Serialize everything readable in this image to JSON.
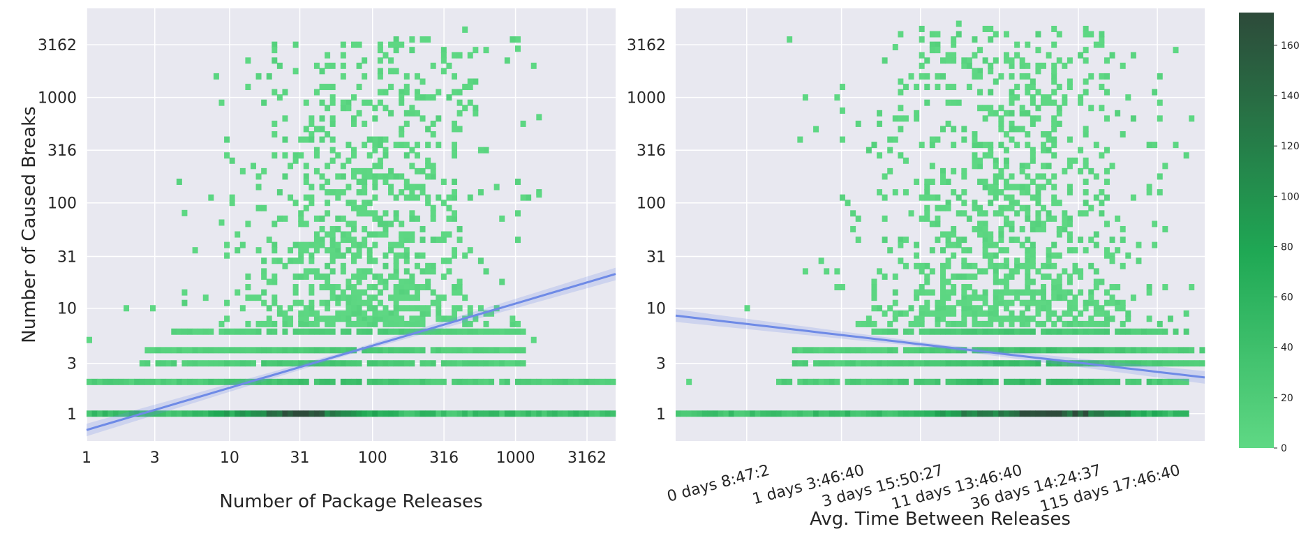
{
  "chart_data": [
    {
      "type": "heatmap",
      "subtype": "2d-histogram-with-regression",
      "xlabel": "Number of Package Releases",
      "ylabel": "Number of Caused Breaks",
      "xscale": "log",
      "yscale": "log",
      "xlim": [
        1,
        5000
      ],
      "ylim": [
        0.55,
        7000
      ],
      "xticks": [
        1,
        3,
        10,
        31,
        100,
        316,
        1000,
        3162
      ],
      "xtick_labels": [
        "1",
        "3",
        "10",
        "31",
        "100",
        "316",
        "1000",
        "3162"
      ],
      "yticks": [
        1,
        3,
        10,
        31,
        100,
        316,
        1000,
        3162
      ],
      "ytick_labels": [
        "1",
        "3",
        "10",
        "31",
        "100",
        "316",
        "1000",
        "3162"
      ],
      "grid": true,
      "bins": {
        "log_x_range": [
          0,
          3.7
        ],
        "n_x": 100,
        "rows": [
          {
            "y": 1,
            "n": 540,
            "from": 0,
            "to": 3.7,
            "base": 40,
            "peak": 150,
            "peak_at": 1.5,
            "spread": 0.45
          },
          {
            "y": 2,
            "n": 160,
            "from": 0,
            "to": 3.7,
            "base": 18,
            "peak": 30,
            "peak_at": 1.6,
            "spread": 0.6
          },
          {
            "y": 3,
            "n": 130,
            "from": 0.4,
            "to": 3.1,
            "base": 14,
            "peak": 22,
            "peak_at": 1.7,
            "spread": 0.6
          },
          {
            "y": 4,
            "n": 120,
            "from": 0.4,
            "to": 3.1,
            "base": 12,
            "peak": 20,
            "peak_at": 1.8,
            "spread": 0.6
          },
          {
            "y": 6,
            "n": 110,
            "from": 0.6,
            "to": 3.1,
            "base": 10,
            "peak": 16,
            "peak_at": 1.9,
            "spread": 0.6
          }
        ],
        "scatter": {
          "n": 900,
          "seed": 7,
          "center_logx": 1.95,
          "sd_logx": 0.45,
          "max_logy": 3.55
        },
        "isolated_cells": [
          {
            "x": 1.0,
            "y": 2.0
          },
          {
            "x": 1.0,
            "y": 5.0
          },
          {
            "x": 1.9,
            "y": 10.0
          },
          {
            "x": 5.0,
            "y": 80.0
          },
          {
            "x": 9.0,
            "y": 65.0
          },
          {
            "x": 430.0,
            "y": 4400.0
          },
          {
            "x": 1000.0,
            "y": 2900.0
          },
          {
            "x": 1400.0,
            "y": 650.0
          },
          {
            "x": 1400.0,
            "y": 120.0
          },
          {
            "x": 1300.0,
            "y": 5.0
          },
          {
            "x": 2100.0,
            "y": 1.0
          },
          {
            "x": 5000.0,
            "y": 2.0
          },
          {
            "x": 5000.0,
            "y": 1.0
          }
        ]
      },
      "regression": {
        "intercept_log10": -0.155,
        "slope": 0.4,
        "color": "#6e8ae6"
      }
    },
    {
      "type": "heatmap",
      "subtype": "2d-histogram-with-regression",
      "xlabel": "Avg. Time Between Releases",
      "ylabel": "",
      "xscale": "log",
      "yscale": "log",
      "ylim": [
        0.55,
        7000
      ],
      "xtick_labels": [
        "0 days 8:47:2",
        "1 days 3:46:40",
        "3 days 15:50:27",
        "11 days 13:46:40",
        "36 days 14:24:37",
        "115 days 17:46:40"
      ],
      "yticks": [
        1,
        3,
        10,
        31,
        100,
        316,
        1000,
        3162
      ],
      "ytick_labels": [
        "1",
        "3",
        "10",
        "31",
        "100",
        "316",
        "1000",
        "3162"
      ],
      "grid": true,
      "bins": {
        "log_x_range": [
          3.75,
          7.1
        ],
        "n_x": 100,
        "rows": [
          {
            "y": 1,
            "n": 560,
            "from": 3.75,
            "to": 7.0,
            "base": 40,
            "peak": 170,
            "peak_at": 6.05,
            "spread": 0.55
          },
          {
            "y": 2,
            "n": 230,
            "from": 4.4,
            "to": 7.0,
            "base": 18,
            "peak": 45,
            "peak_at": 6.0,
            "spread": 0.6
          },
          {
            "y": 3,
            "n": 200,
            "from": 4.5,
            "to": 7.1,
            "base": 16,
            "peak": 36,
            "peak_at": 6.0,
            "spread": 0.6
          },
          {
            "y": 4,
            "n": 180,
            "from": 4.5,
            "to": 7.1,
            "base": 14,
            "peak": 30,
            "peak_at": 6.0,
            "spread": 0.6
          },
          {
            "y": 6,
            "n": 160,
            "from": 5.0,
            "to": 7.0,
            "base": 12,
            "peak": 24,
            "peak_at": 6.0,
            "spread": 0.6
          }
        ],
        "scatter": {
          "n": 1000,
          "seed": 11,
          "center_logx": 5.85,
          "sd_logx": 0.45,
          "max_logy": 3.65
        },
        "isolated_cells": [
          {
            "x": 3.85,
            "y": 2.0
          },
          {
            "x": 4.2,
            "y": 10.0
          },
          {
            "x": 4.65,
            "y": 500.0
          },
          {
            "x": 4.8,
            "y": 750.0
          },
          {
            "x": 5.15,
            "y": 3000.0
          },
          {
            "x": 5.55,
            "y": 5000.0
          }
        ]
      },
      "regression": {
        "intercept_log10": 0.93,
        "slope": -0.175,
        "x_zero_log": 3.75,
        "color": "#6e8ae6"
      }
    }
  ],
  "colorbar": {
    "ticks": [
      0,
      20,
      40,
      60,
      80,
      100,
      120,
      140,
      160
    ],
    "tick_labels": [
      "0",
      "20",
      "40",
      "60",
      "80",
      "100",
      "120",
      "140",
      "160"
    ],
    "min": 0,
    "max": 173,
    "color_low": "#5fd884",
    "color_mid": "#1fa854",
    "color_high": "#2d4a3a"
  },
  "style": {
    "plot_bg": "#e8e8f0",
    "grid_color": "#ffffff",
    "line_color": "#6e8ae6"
  }
}
